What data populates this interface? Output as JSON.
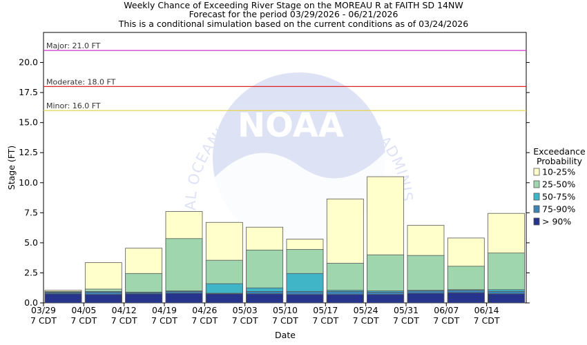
{
  "chart_data": {
    "type": "bar",
    "title": [
      "Weekly Chance of Exceeding River Stage on the MOREAU R at FAITH SD 14NW",
      "Forecast for the period 03/29/2026 - 06/21/2026",
      "This is a conditional simulation based on the current conditions as of 03/24/2026"
    ],
    "xlabel": "Date",
    "ylabel": "Stage (FT)",
    "ylim": [
      0,
      22.5
    ],
    "yticks": [
      "0.0",
      "2.5",
      "5.0",
      "7.5",
      "10.0",
      "12.5",
      "15.0",
      "17.5",
      "20.0"
    ],
    "categories": [
      "03/29",
      "04/05",
      "04/12",
      "04/19",
      "04/26",
      "05/03",
      "05/10",
      "05/17",
      "05/24",
      "05/31",
      "06/07",
      "06/14"
    ],
    "tick_sublabel": "7 CDT",
    "flood_levels": [
      {
        "label": "Major: 21.0 FT",
        "value": 21.0,
        "color": "#cc33cc"
      },
      {
        "label": "Moderate: 18.0 FT",
        "value": 18.0,
        "color": "#dd2222"
      },
      {
        "label": "Minor: 16.0 FT",
        "value": 16.0,
        "color": "#e8d24a"
      }
    ],
    "legend_title": [
      "Exceedance",
      "Probability"
    ],
    "legend_position": "right",
    "series": [
      {
        "name": "> 90%",
        "color": "#27348b",
        "values": [
          0.75,
          0.7,
          0.75,
          0.8,
          0.75,
          0.75,
          0.7,
          0.7,
          0.7,
          0.8,
          0.85,
          0.75
        ]
      },
      {
        "name": "75-90%",
        "color": "#3b83b5",
        "values": [
          0.85,
          0.9,
          0.85,
          0.95,
          0.8,
          0.95,
          0.95,
          0.95,
          0.9,
          1.0,
          1.05,
          0.95
        ]
      },
      {
        "name": "50-75%",
        "color": "#40b5c8",
        "values": [
          0.9,
          0.95,
          0.9,
          1.0,
          1.6,
          1.25,
          2.45,
          1.05,
          1.0,
          1.05,
          1.1,
          1.1
        ]
      },
      {
        "name": "25-50%",
        "color": "#9fd6ae",
        "values": [
          0.95,
          1.15,
          2.45,
          5.35,
          3.55,
          4.4,
          4.45,
          3.3,
          4.0,
          3.95,
          3.05,
          4.15
        ]
      },
      {
        "name": "10-25%",
        "color": "#ffffcc",
        "values": [
          1.05,
          3.35,
          4.55,
          7.6,
          6.7,
          6.3,
          5.3,
          8.65,
          10.5,
          6.45,
          5.4,
          7.45
        ]
      }
    ]
  },
  "watermark": {
    "arc_text_top": "NATIONAL OCEANIC AND ATMOSPHERIC ADMINISTRATION",
    "center_text": "NOAA"
  }
}
